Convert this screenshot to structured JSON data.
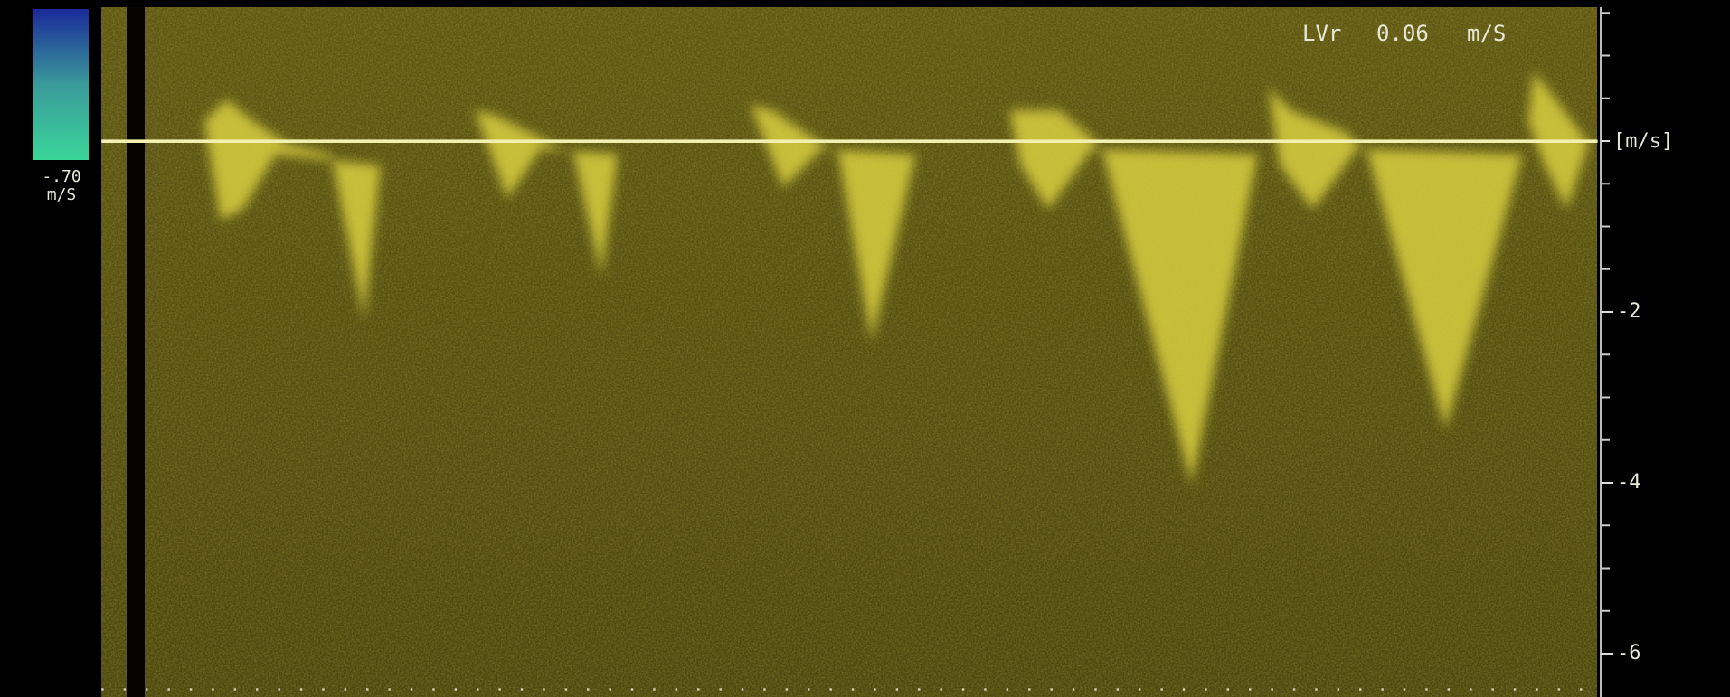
{
  "header": {
    "parameter": "LVr",
    "reading": "0.06",
    "unit": "m/S"
  },
  "color_bar": {
    "value": "-.70",
    "unit": "m/S"
  },
  "velocity_axis": {
    "label": "[m/s]",
    "ticks": [
      -2,
      -4,
      -6
    ],
    "minor_ticks": [
      1.5,
      1,
      0.5,
      -0.5,
      -1,
      -1.5,
      -2.5,
      -3,
      -3.5,
      -4.5,
      -5,
      -5.5
    ]
  }
}
